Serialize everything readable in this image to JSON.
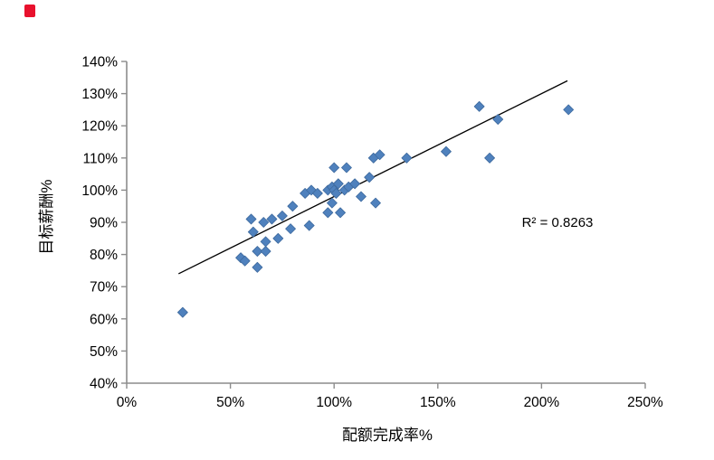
{
  "corner_mark": {
    "color": "#E8112D"
  },
  "chart_data": {
    "type": "scatter",
    "title": "",
    "xlabel": "配额完成率%",
    "ylabel": "目标薪酬%",
    "xlim": [
      0,
      250
    ],
    "ylim": [
      40,
      140
    ],
    "grid": false,
    "legend": "none",
    "x_tick_values": [
      0,
      50,
      100,
      150,
      200,
      250
    ],
    "x_tick_labels": [
      "0%",
      "50%",
      "100%",
      "150%",
      "200%",
      "250%"
    ],
    "y_tick_values": [
      40,
      50,
      60,
      70,
      80,
      90,
      100,
      110,
      120,
      130,
      140
    ],
    "y_tick_labels": [
      "40%",
      "50%",
      "60%",
      "70%",
      "80%",
      "90%",
      "100%",
      "110%",
      "120%",
      "130%",
      "140%"
    ],
    "series": [
      {
        "name": "目标薪酬%",
        "marker": "diamond",
        "points": [
          [
            27,
            62
          ],
          [
            55,
            79
          ],
          [
            57,
            78
          ],
          [
            60,
            91
          ],
          [
            61,
            87
          ],
          [
            63,
            81
          ],
          [
            63,
            76
          ],
          [
            66,
            90
          ],
          [
            67,
            84
          ],
          [
            67,
            81
          ],
          [
            70,
            91
          ],
          [
            73,
            85
          ],
          [
            75,
            92
          ],
          [
            79,
            88
          ],
          [
            80,
            95
          ],
          [
            86,
            99
          ],
          [
            88,
            89
          ],
          [
            89,
            100
          ],
          [
            92,
            99
          ],
          [
            97,
            100
          ],
          [
            97,
            93
          ],
          [
            99,
            96
          ],
          [
            99,
            101
          ],
          [
            100,
            107
          ],
          [
            100,
            100
          ],
          [
            101,
            99
          ],
          [
            102,
            102
          ],
          [
            103,
            93
          ],
          [
            105,
            100
          ],
          [
            106,
            107
          ],
          [
            107,
            101
          ],
          [
            110,
            102
          ],
          [
            113,
            98
          ],
          [
            117,
            104
          ],
          [
            119,
            110
          ],
          [
            122,
            111
          ],
          [
            120,
            96
          ],
          [
            135,
            110
          ],
          [
            154,
            112
          ],
          [
            170,
            126
          ],
          [
            175,
            110
          ],
          [
            179,
            122
          ],
          [
            213,
            125
          ]
        ]
      }
    ],
    "trendline": {
      "x1": 25,
      "y1": 74,
      "x2": 212.5,
      "y2": 134
    },
    "annotation": {
      "text": "R² = 0.8263"
    },
    "colors": {
      "marker": "#4F81BD",
      "marker_border": "#3E6A9E",
      "trend": "#000000",
      "axis": "#8C8C8C",
      "text": "#000000"
    }
  }
}
